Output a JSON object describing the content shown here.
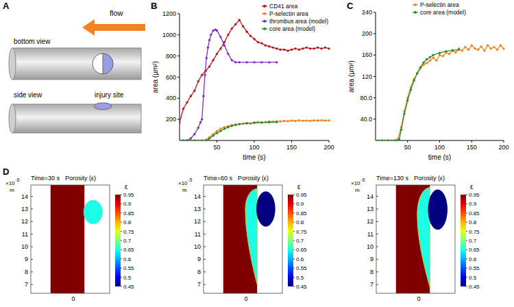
{
  "diagram": {
    "panel_label": "A",
    "flow_label": "flow",
    "bottom_view": "bottom view",
    "side_view": "side view",
    "injury_label": "injury site"
  },
  "chart_data": [
    {
      "type": "line",
      "panel_label": "B",
      "x_label": "time (s)",
      "y_label": "area (µm²)",
      "xlim": [
        0,
        200
      ],
      "xticks": [
        50,
        100,
        150,
        200
      ],
      "ylim": [
        0,
        1200
      ],
      "yticks": [
        200,
        400,
        600,
        800,
        1000,
        1200
      ],
      "grid": false,
      "legend": "top-right",
      "series": [
        {
          "name": "CD41 area",
          "color": "#b8141c",
          "marker": "circle",
          "x": [
            0,
            5,
            10,
            15,
            20,
            25,
            30,
            35,
            40,
            45,
            50,
            55,
            60,
            65,
            70,
            75,
            80,
            85,
            90,
            95,
            100,
            105,
            110,
            115,
            120,
            125,
            130,
            135,
            140,
            145,
            150,
            155,
            160,
            165,
            170,
            175,
            180,
            185,
            190,
            195,
            200
          ],
          "values": [
            170,
            300,
            360,
            420,
            470,
            560,
            620,
            660,
            700,
            760,
            820,
            870,
            930,
            1000,
            1060,
            1100,
            1140,
            1080,
            1030,
            990,
            960,
            930,
            920,
            900,
            890,
            880,
            870,
            860,
            860,
            850,
            860,
            870,
            860,
            870,
            880,
            870,
            870,
            880,
            870,
            880,
            870
          ]
        },
        {
          "name": "P-selectin area",
          "color": "#f58220",
          "marker": "circle",
          "x": [
            0,
            5,
            10,
            15,
            20,
            25,
            30,
            35,
            40,
            45,
            50,
            55,
            60,
            65,
            70,
            75,
            80,
            85,
            90,
            95,
            100,
            105,
            110,
            115,
            120,
            125,
            130,
            135,
            140,
            145,
            150,
            155,
            160,
            165,
            170,
            175,
            180,
            185,
            190,
            195,
            200
          ],
          "values": [
            0,
            0,
            0,
            0,
            0,
            0,
            0,
            5,
            30,
            60,
            90,
            110,
            125,
            135,
            145,
            150,
            155,
            160,
            165,
            160,
            170,
            175,
            170,
            175,
            180,
            178,
            182,
            180,
            185,
            183,
            188,
            185,
            190,
            186,
            188,
            185,
            190,
            188,
            192,
            188,
            190
          ]
        },
        {
          "name": "thrombus area (model)",
          "color": "#7b2fbe",
          "marker": "circle",
          "x": [
            0,
            5,
            10,
            15,
            20,
            25,
            28,
            30,
            32,
            34,
            36,
            38,
            40,
            42,
            45,
            48,
            50,
            55,
            60,
            65,
            70,
            75,
            80,
            90,
            100,
            110,
            120,
            130
          ],
          "values": [
            0,
            0,
            0,
            20,
            60,
            120,
            170,
            200,
            420,
            620,
            780,
            880,
            950,
            1000,
            1040,
            1050,
            1040,
            980,
            900,
            820,
            760,
            740,
            740,
            740,
            740,
            740,
            740,
            740
          ]
        },
        {
          "name": "core area (model)",
          "color": "#2e8b2e",
          "marker": "circle",
          "x": [
            0,
            10,
            20,
            30,
            35,
            38,
            40,
            45,
            50,
            55,
            60,
            65,
            70,
            75,
            80,
            90,
            100,
            110,
            120,
            130
          ],
          "values": [
            0,
            0,
            0,
            0,
            0,
            5,
            20,
            45,
            70,
            90,
            110,
            125,
            138,
            148,
            155,
            162,
            167,
            170,
            172,
            174
          ]
        }
      ]
    },
    {
      "type": "line",
      "panel_label": "C",
      "x_label": "time (s)",
      "y_label": "area (µm²)",
      "xlim": [
        0,
        200
      ],
      "xticks": [
        50,
        100,
        150,
        200
      ],
      "ylim": [
        0,
        240
      ],
      "yticks": [
        {
          "value": 40,
          "label": "40.0"
        },
        {
          "value": 80,
          "label": "80.0"
        },
        120,
        160,
        200,
        240
      ],
      "grid": false,
      "legend": "top",
      "series": [
        {
          "name": "P-selectin area",
          "color": "#f58220",
          "marker": "circle",
          "x": [
            0,
            5,
            10,
            15,
            20,
            25,
            30,
            35,
            40,
            45,
            50,
            55,
            60,
            65,
            70,
            75,
            80,
            85,
            90,
            95,
            100,
            105,
            110,
            115,
            120,
            125,
            130,
            135,
            140,
            145,
            150,
            155,
            160,
            165,
            170,
            175,
            180,
            185,
            190,
            195,
            200
          ],
          "values": [
            0,
            0,
            0,
            0,
            0,
            0,
            0,
            3,
            25,
            55,
            80,
            100,
            115,
            125,
            135,
            142,
            145,
            150,
            155,
            150,
            160,
            158,
            165,
            162,
            168,
            165,
            172,
            168,
            175,
            170,
            178,
            172,
            170,
            176,
            168,
            178,
            172,
            175,
            170,
            178,
            172
          ]
        },
        {
          "name": "core area (model)",
          "color": "#2e8b2e",
          "marker": "circle",
          "x": [
            0,
            10,
            20,
            30,
            35,
            37,
            40,
            45,
            50,
            55,
            60,
            65,
            70,
            75,
            80,
            85,
            90,
            100,
            110,
            120,
            130
          ],
          "values": [
            0,
            0,
            0,
            0,
            0,
            2,
            20,
            50,
            75,
            95,
            112,
            126,
            137,
            146,
            152,
            156,
            160,
            164,
            167,
            169,
            170
          ]
        }
      ]
    },
    {
      "type": "porosity_map",
      "panel_label": "D",
      "title": "Time=30 s",
      "subtitle": "Porosity (ε)",
      "xlim": [
        -2.7,
        2.3
      ],
      "xticks": [
        0
      ],
      "ylim": [
        6.3,
        14.9
      ],
      "yticks": [
        7,
        8,
        9,
        10,
        11,
        12,
        13,
        14
      ],
      "y_multiplier": "×10",
      "y_exponent": "-5",
      "y_unit": "m",
      "colorbar": {
        "label": "ε",
        "range": [
          0.45,
          0.95
        ],
        "ticks": [
          0.45,
          0.5,
          0.55,
          0.6,
          0.65,
          0.7,
          0.75,
          0.8,
          0.85,
          0.9,
          0.95
        ]
      },
      "lumen": {
        "porosity": 0.95,
        "x_range": [
          -1.45,
          0.7
        ],
        "y_range": [
          6.3,
          14.9
        ]
      },
      "shell": {
        "porosity": 0.65,
        "cx": 1.25,
        "cy": 12.75,
        "rx": 0.6,
        "ry": 0.95
      }
    },
    {
      "type": "porosity_map",
      "title": "Time=60 s",
      "subtitle": "Porosity (ε)",
      "xlim": [
        -2.7,
        2.3
      ],
      "xticks": [
        0
      ],
      "ylim": [
        6.3,
        14.9
      ],
      "yticks": [
        7,
        8,
        9,
        10,
        11,
        12,
        13,
        14
      ],
      "y_multiplier": "×10",
      "y_exponent": "-5",
      "y_unit": "m",
      "colorbar": {
        "label": "ε",
        "range": [
          0.45,
          0.95
        ],
        "ticks": [
          0.45,
          0.5,
          0.55,
          0.6,
          0.65,
          0.7,
          0.75,
          0.8,
          0.85,
          0.9,
          0.95
        ]
      },
      "lumen": {
        "porosity": 0.95,
        "x_range": [
          -1.45,
          0.7
        ],
        "y_range": [
          6.3,
          14.9
        ]
      },
      "shell": {
        "porosity": 0.65,
        "y_range": [
          7.0,
          14.6
        ],
        "peak_y": 13.0,
        "thickness": 0.75
      },
      "core": {
        "porosity": 0.45,
        "cx": 1.25,
        "cy": 13.0,
        "rx": 0.6,
        "ry": 1.4
      }
    },
    {
      "type": "porosity_map",
      "title": "Time=130 s",
      "subtitle": "Porosity (ε)",
      "xlim": [
        -2.7,
        2.3
      ],
      "xticks": [
        0
      ],
      "ylim": [
        6.3,
        14.9
      ],
      "yticks": [
        7,
        8,
        9,
        10,
        11,
        12,
        13,
        14
      ],
      "y_multiplier": "×10",
      "y_exponent": "-5",
      "y_unit": "m",
      "colorbar": {
        "label": "ε",
        "range": [
          0.45,
          0.95
        ],
        "ticks": [
          0.45,
          0.5,
          0.55,
          0.6,
          0.65,
          0.7,
          0.75,
          0.8,
          0.85,
          0.9,
          0.95
        ]
      },
      "lumen": {
        "porosity": 0.95,
        "x_range": [
          -1.45,
          0.7
        ],
        "y_range": [
          6.3,
          14.9
        ]
      },
      "shell": {
        "porosity": 0.65,
        "y_range": [
          6.8,
          14.7
        ],
        "peak_y": 12.6,
        "thickness": 0.8
      },
      "core": {
        "porosity": 0.45,
        "cx": 1.2,
        "cy": 12.95,
        "rx": 0.62,
        "ry": 1.6
      }
    }
  ]
}
